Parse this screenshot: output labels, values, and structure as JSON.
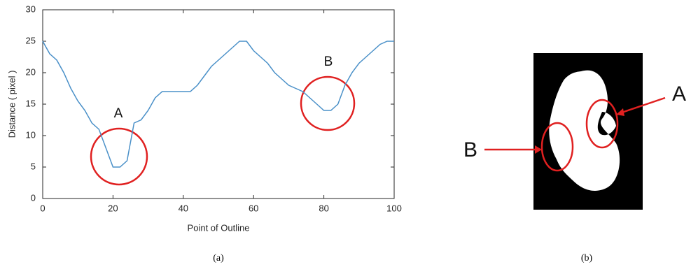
{
  "chart_data": {
    "type": "line",
    "x_label": "Point of Outline",
    "y_label": "Distance ( pixel )",
    "annotations": [
      "A",
      "B"
    ],
    "x": [
      0,
      2,
      4,
      6,
      8,
      10,
      12,
      14,
      16,
      18,
      20,
      22,
      24,
      26,
      28,
      30,
      32,
      34,
      36,
      38,
      40,
      42,
      44,
      46,
      48,
      50,
      52,
      54,
      56,
      58,
      60,
      62,
      64,
      66,
      68,
      70,
      72,
      74,
      76,
      78,
      80,
      82,
      84,
      86,
      88,
      90,
      92,
      94,
      96,
      98,
      100
    ],
    "values": [
      25,
      23,
      22,
      20,
      17.5,
      15.5,
      14,
      12,
      11,
      8,
      5,
      5,
      6,
      12,
      12.5,
      14,
      16,
      17,
      17,
      17,
      17,
      17,
      18,
      19.5,
      21,
      22,
      23,
      24,
      25,
      25,
      23.5,
      22.5,
      21.5,
      20,
      19,
      18,
      17.5,
      17,
      16,
      15,
      14,
      14,
      15,
      18,
      20,
      21.5,
      22.5,
      23.5,
      24.5,
      25,
      25
    ],
    "color": "#4a90c8",
    "xlim": [
      0,
      100
    ],
    "xticks": [
      0,
      20,
      40,
      60,
      80,
      100
    ],
    "ylim": [
      0,
      30
    ],
    "yticks": [
      0,
      5,
      10,
      15,
      20,
      25,
      30
    ]
  },
  "captions": [
    "(a)",
    "(b)"
  ],
  "image_labels": [
    "A",
    "B"
  ]
}
